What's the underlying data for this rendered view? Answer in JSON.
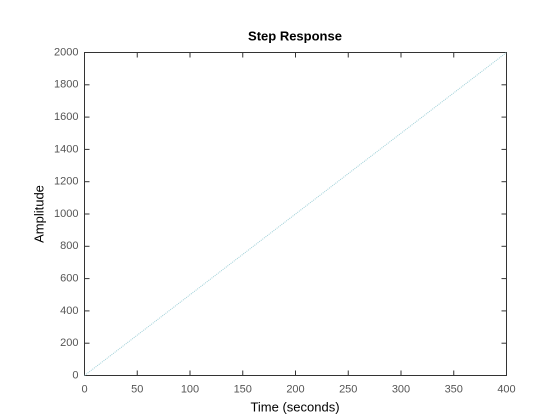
{
  "chart_data": {
    "type": "line",
    "title": "Step Response",
    "xlabel": "Time (seconds)",
    "ylabel": "Amplitude",
    "x": [
      0,
      400
    ],
    "series": [
      {
        "color": "#9fd0d8",
        "values": [
          0,
          2000
        ]
      }
    ],
    "xlim": [
      0,
      400
    ],
    "xticks": [
      0,
      50,
      100,
      150,
      200,
      250,
      300,
      350,
      400
    ],
    "ylim": [
      0,
      2000
    ],
    "yticks": [
      0,
      200,
      400,
      600,
      800,
      1000,
      1200,
      1400,
      1600,
      1800,
      2000
    ],
    "grid": false
  }
}
